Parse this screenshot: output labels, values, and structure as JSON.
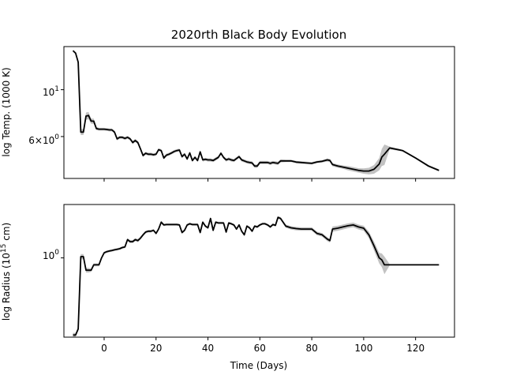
{
  "chart_data": {
    "type": "line",
    "title": "2020rth Black Body Evolution",
    "xlabel": "Time (Days)",
    "xlim": [
      -15.5,
      135
    ],
    "x_ticks": [
      0,
      20,
      40,
      60,
      80,
      100,
      120
    ],
    "x_tick_labels": [
      "0",
      "20",
      "40",
      "60",
      "80",
      "100",
      "120"
    ],
    "panels": [
      {
        "name": "temperature",
        "ylabel": "log Temp. (1000 K)",
        "yscale": "log",
        "ylim": [
          3.8,
          16.0
        ],
        "y_ticks": [
          10,
          6
        ],
        "y_tick_labels": [
          "10^{1}",
          "6×10^{0}"
        ],
        "series": [
          {
            "x": [
              -12,
              -11,
              -10,
              -9,
              -8,
              -7,
              -6,
              -5,
              -4,
              -3,
              -2,
              -1,
              0,
              1,
              2,
              3,
              4,
              5,
              6,
              7,
              8,
              9,
              10,
              11,
              12,
              13,
              14,
              15,
              16,
              17,
              18,
              19,
              20,
              21,
              22,
              23,
              24,
              25,
              26,
              27,
              28,
              29,
              30,
              31,
              32,
              33,
              34,
              35,
              36,
              37,
              38,
              39,
              40,
              41,
              42,
              43,
              44,
              45,
              46,
              47,
              48,
              49,
              50,
              51,
              52,
              53,
              54,
              55,
              56,
              57,
              58,
              59,
              60,
              61,
              62,
              63,
              64,
              65,
              66,
              67,
              68,
              70,
              72,
              74,
              76,
              78,
              80,
              82,
              84,
              86,
              87,
              88,
              90,
              92,
              94,
              96,
              98,
              100,
              102,
              104,
              106,
              107,
              108,
              110,
              115,
              120,
              125,
              129
            ],
            "y": [
              15.3,
              14.9,
              13.5,
              6.3,
              6.3,
              7.5,
              7.55,
              7.1,
              7.1,
              6.55,
              6.5,
              6.5,
              6.5,
              6.48,
              6.45,
              6.45,
              6.3,
              5.85,
              5.95,
              5.95,
              5.88,
              5.95,
              5.85,
              5.62,
              5.75,
              5.62,
              5.25,
              4.88,
              5.0,
              4.95,
              4.95,
              4.92,
              4.95,
              5.2,
              5.15,
              4.75,
              4.9,
              4.95,
              5.02,
              5.1,
              5.15,
              5.18,
              4.82,
              4.95,
              4.7,
              5.02,
              4.62,
              4.78,
              4.62,
              5.08,
              4.65,
              4.68,
              4.65,
              4.65,
              4.62,
              4.7,
              4.78,
              5.0,
              4.78,
              4.65,
              4.7,
              4.65,
              4.62,
              4.72,
              4.82,
              4.65,
              4.6,
              4.55,
              4.52,
              4.5,
              4.35,
              4.35,
              4.52,
              4.52,
              4.52,
              4.52,
              4.48,
              4.52,
              4.5,
              4.48,
              4.6,
              4.6,
              4.6,
              4.54,
              4.52,
              4.5,
              4.48,
              4.55,
              4.58,
              4.65,
              4.62,
              4.42,
              4.35,
              4.3,
              4.25,
              4.2,
              4.15,
              4.12,
              4.12,
              4.2,
              4.45,
              4.8,
              4.95,
              5.3,
              5.15,
              4.75,
              4.35,
              4.15
            ],
            "band_halfwidth": [
              0.15,
              0.15,
              0.15,
              0.2,
              0.2,
              0.3,
              0.3,
              0.2,
              0.2,
              0.12,
              0.1,
              0.1,
              0.1,
              0.1,
              0.1,
              0.1,
              0.1,
              0.1,
              0.1,
              0.1,
              0.1,
              0.1,
              0.1,
              0.1,
              0.1,
              0.1,
              0.08,
              0.08,
              0.08,
              0.08,
              0.08,
              0.08,
              0.08,
              0.08,
              0.08,
              0.08,
              0.08,
              0.08,
              0.08,
              0.08,
              0.08,
              0.08,
              0.08,
              0.08,
              0.08,
              0.08,
              0.08,
              0.08,
              0.08,
              0.08,
              0.08,
              0.08,
              0.08,
              0.08,
              0.08,
              0.08,
              0.08,
              0.08,
              0.08,
              0.08,
              0.08,
              0.08,
              0.08,
              0.08,
              0.08,
              0.08,
              0.08,
              0.08,
              0.08,
              0.08,
              0.08,
              0.08,
              0.08,
              0.08,
              0.08,
              0.08,
              0.08,
              0.08,
              0.08,
              0.08,
              0.08,
              0.06,
              0.06,
              0.06,
              0.06,
              0.06,
              0.06,
              0.06,
              0.06,
              0.08,
              0.08,
              0.08,
              0.08,
              0.08,
              0.1,
              0.1,
              0.1,
              0.12,
              0.15,
              0.2,
              0.3,
              0.45,
              0.55,
              0.08,
              0.05,
              0.05,
              0.05,
              0.05
            ]
          }
        ]
      },
      {
        "name": "radius",
        "ylabel_pre": "log Radius (10",
        "ylabel_sup": "15",
        "ylabel_post": " cm)",
        "yscale": "log",
        "ylim": [
          0.3,
          2.25
        ],
        "y_ticks": [
          1.0
        ],
        "y_tick_labels": [
          "10^{0}"
        ],
        "series": [
          {
            "x": [
              -12,
              -11,
              -10,
              -9,
              -8,
              -7,
              -6,
              -5,
              -4,
              -3,
              -2,
              -1,
              0,
              1,
              2,
              3,
              4,
              5,
              6,
              7,
              8,
              9,
              10,
              11,
              12,
              13,
              14,
              15,
              16,
              17,
              18,
              19,
              20,
              21,
              22,
              23,
              24,
              25,
              26,
              27,
              28,
              29,
              30,
              31,
              32,
              33,
              34,
              35,
              36,
              37,
              38,
              39,
              40,
              41,
              42,
              43,
              44,
              45,
              46,
              47,
              48,
              49,
              50,
              51,
              52,
              53,
              54,
              55,
              56,
              57,
              58,
              59,
              60,
              61,
              62,
              63,
              64,
              65,
              66,
              67,
              68,
              70,
              72,
              74,
              76,
              78,
              80,
              82,
              84,
              86,
              87,
              88,
              90,
              92,
              94,
              96,
              98,
              100,
              102,
              104,
              106,
              107,
              108,
              110,
              115,
              120,
              125,
              129
            ],
            "y": [
              0.31,
              0.31,
              0.34,
              1.02,
              1.02,
              0.83,
              0.83,
              0.83,
              0.9,
              0.9,
              0.9,
              1.0,
              1.08,
              1.1,
              1.11,
              1.12,
              1.13,
              1.14,
              1.15,
              1.17,
              1.18,
              1.32,
              1.28,
              1.28,
              1.32,
              1.3,
              1.35,
              1.42,
              1.48,
              1.5,
              1.5,
              1.52,
              1.45,
              1.55,
              1.72,
              1.65,
              1.66,
              1.66,
              1.66,
              1.66,
              1.66,
              1.65,
              1.47,
              1.52,
              1.65,
              1.68,
              1.66,
              1.66,
              1.66,
              1.47,
              1.72,
              1.62,
              1.58,
              1.82,
              1.52,
              1.72,
              1.7,
              1.7,
              1.7,
              1.48,
              1.7,
              1.68,
              1.65,
              1.55,
              1.65,
              1.5,
              1.42,
              1.62,
              1.58,
              1.5,
              1.62,
              1.6,
              1.65,
              1.68,
              1.68,
              1.65,
              1.6,
              1.66,
              1.64,
              1.85,
              1.82,
              1.62,
              1.58,
              1.56,
              1.55,
              1.55,
              1.55,
              1.45,
              1.42,
              1.33,
              1.3,
              1.55,
              1.57,
              1.6,
              1.63,
              1.65,
              1.6,
              1.57,
              1.42,
              1.2,
              1.0,
              0.97,
              0.9,
              0.9,
              0.9,
              0.9,
              0.9,
              0.9
            ],
            "band_halfwidth": [
              0.01,
              0.01,
              0.01,
              0.04,
              0.04,
              0.03,
              0.03,
              0.02,
              0.02,
              0.02,
              0.02,
              0.02,
              0.02,
              0.02,
              0.02,
              0.02,
              0.02,
              0.02,
              0.02,
              0.02,
              0.02,
              0.03,
              0.03,
              0.03,
              0.03,
              0.03,
              0.03,
              0.03,
              0.03,
              0.03,
              0.03,
              0.03,
              0.03,
              0.03,
              0.04,
              0.03,
              0.03,
              0.03,
              0.03,
              0.03,
              0.03,
              0.03,
              0.03,
              0.03,
              0.03,
              0.03,
              0.03,
              0.03,
              0.03,
              0.03,
              0.03,
              0.03,
              0.03,
              0.03,
              0.03,
              0.03,
              0.03,
              0.03,
              0.03,
              0.03,
              0.03,
              0.03,
              0.03,
              0.03,
              0.03,
              0.03,
              0.03,
              0.03,
              0.03,
              0.03,
              0.03,
              0.03,
              0.03,
              0.03,
              0.03,
              0.03,
              0.03,
              0.03,
              0.03,
              0.04,
              0.04,
              0.04,
              0.04,
              0.04,
              0.04,
              0.04,
              0.04,
              0.04,
              0.04,
              0.04,
              0.04,
              0.06,
              0.06,
              0.06,
              0.06,
              0.06,
              0.06,
              0.06,
              0.07,
              0.08,
              0.08,
              0.1,
              0.12,
              0.01,
              0.01,
              0.01,
              0.01,
              0.01
            ]
          }
        ]
      }
    ]
  }
}
